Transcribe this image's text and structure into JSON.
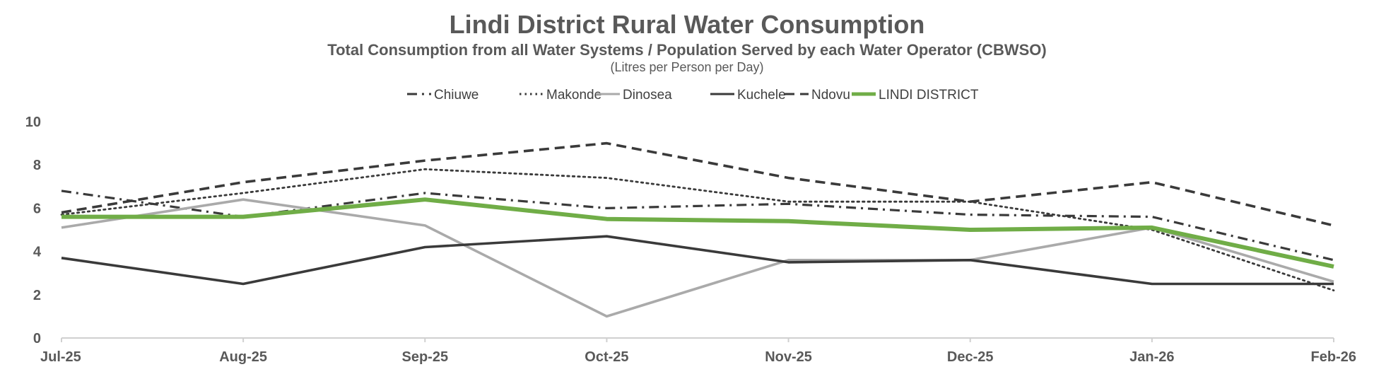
{
  "chart_data": {
    "type": "line",
    "title": "Lindi District Rural Water Consumption",
    "subtitle": "Total Consumption from all Water Systems / Population Served by each Water Operator (CBWSO)",
    "units": "(Litres per Person per Day)",
    "xlabel": "",
    "ylabel": "",
    "ylim": [
      0,
      10
    ],
    "yticks": [
      0,
      2,
      4,
      6,
      8,
      10
    ],
    "grid": false,
    "legend_position": "top",
    "categories": [
      "Jul-25",
      "Aug-25",
      "Sep-25",
      "Oct-25",
      "Nov-25",
      "Dec-25",
      "Jan-26",
      "Feb-26"
    ],
    "series": [
      {
        "name": "Chiuwe",
        "style": "dash-dot",
        "color": "#3a3a3a",
        "values": [
          6.8,
          5.6,
          6.7,
          6.0,
          6.2,
          5.7,
          5.6,
          3.6
        ]
      },
      {
        "name": "Makonde",
        "style": "dotted",
        "color": "#3a3a3a",
        "values": [
          5.7,
          6.7,
          7.8,
          7.4,
          6.3,
          6.3,
          5.0,
          2.2
        ]
      },
      {
        "name": "Dinosea",
        "style": "solid",
        "color": "#aaaaaa",
        "values": [
          5.1,
          6.4,
          5.2,
          1.0,
          3.6,
          3.6,
          5.1,
          2.6
        ]
      },
      {
        "name": "Kuchele",
        "style": "solid",
        "color": "#3a3a3a",
        "values": [
          3.7,
          2.5,
          4.2,
          4.7,
          3.5,
          3.6,
          2.5,
          2.5
        ]
      },
      {
        "name": "Ndovu",
        "style": "dashed",
        "color": "#3a3a3a",
        "values": [
          5.8,
          7.2,
          8.2,
          9.0,
          7.4,
          6.3,
          7.2,
          5.2
        ]
      },
      {
        "name": "LINDI DISTRICT",
        "style": "thick",
        "color": "#70ad47",
        "values": [
          5.6,
          5.6,
          6.4,
          5.5,
          5.4,
          5.0,
          5.1,
          3.3
        ]
      }
    ]
  }
}
